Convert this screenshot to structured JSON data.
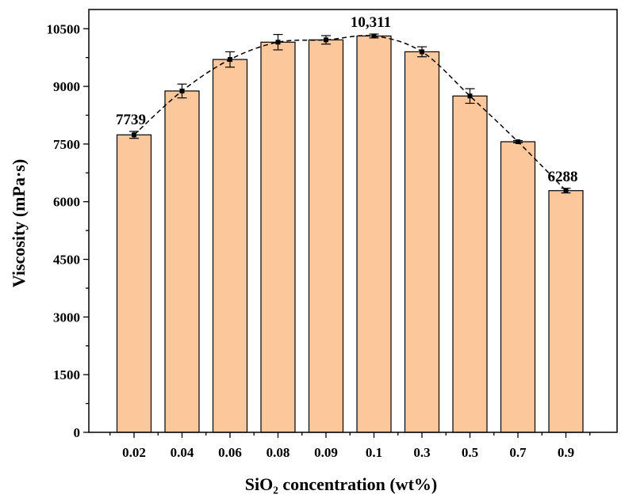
{
  "chart_data": {
    "type": "bar",
    "categories": [
      "0.02",
      "0.04",
      "0.06",
      "0.08",
      "0.09",
      "0.1",
      "0.3",
      "0.5",
      "0.7",
      "0.9"
    ],
    "values": [
      7739,
      8880,
      9700,
      10150,
      10210,
      10311,
      9900,
      8750,
      7560,
      6288
    ],
    "errors": [
      90,
      180,
      200,
      200,
      110,
      50,
      130,
      190,
      30,
      60
    ],
    "trend_line": {
      "style": "dashed",
      "marker": "square"
    },
    "xlabel": "SiO₂ concentration (wt%)",
    "ylabel": "Viscosity (mPa·s)",
    "ylim": [
      0,
      11000
    ],
    "yticks": [
      "0",
      "1500",
      "3000",
      "4500",
      "6000",
      "7500",
      "9000",
      "10500"
    ],
    "bar_color": "#fcc89b",
    "bar_edge_color": "#000000",
    "annotations": [
      {
        "category": "0.02",
        "text": "7739"
      },
      {
        "category": "0.1",
        "text": "10,311"
      },
      {
        "category": "0.9",
        "text": "6288"
      }
    ]
  }
}
